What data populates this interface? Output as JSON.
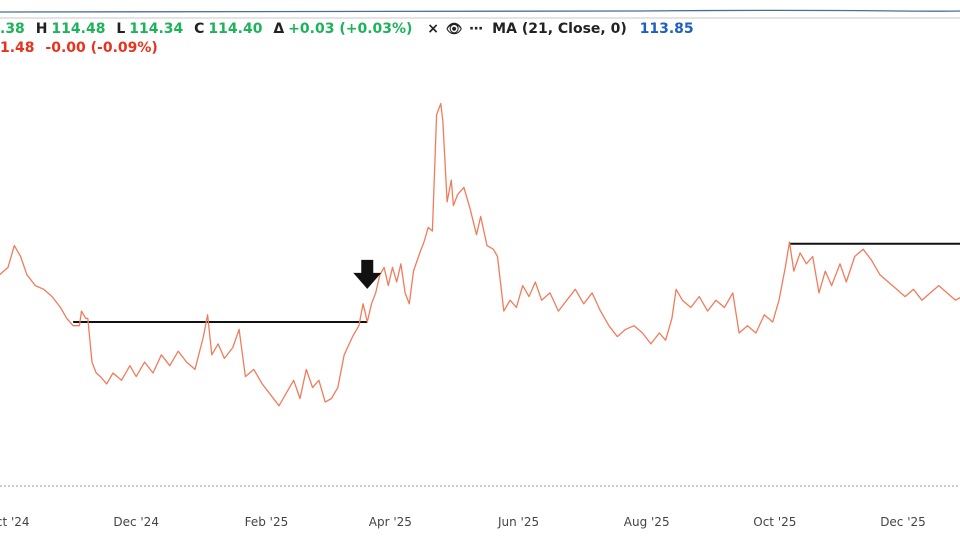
{
  "legend": {
    "row1": {
      "open_partial": ".38",
      "high_label": "H",
      "high": "114.48",
      "low_label": "L",
      "low": "114.34",
      "close_label": "C",
      "close": "114.40",
      "delta_label": "Δ",
      "delta": "+0.03 (+0.03%)",
      "close_icon": "×",
      "eye_icon": "👁",
      "more_icon": "⋯",
      "ma_label": "MA (21, Close, 0)",
      "ma_value": "113.85"
    },
    "row2": {
      "value_partial": "1.48",
      "change": "-0.00 (-0.09%)"
    }
  },
  "colors": {
    "line": "#f07c5c",
    "up": "#1db35a",
    "down": "#e8321e",
    "ma": "#1f5fbf",
    "annotation": "#111111"
  },
  "chart_data": {
    "type": "line",
    "x_ticks": [
      "Oct '24",
      "Dec '24",
      "Feb '25",
      "Apr '25",
      "Jun '25",
      "Aug '25",
      "Oct '25",
      "Dec '25"
    ],
    "y_axis_visible": false,
    "ylim": [
      0,
      100
    ],
    "series": [
      {
        "points": [
          [
            "2024-09-15",
            58
          ],
          [
            "2024-09-20",
            60
          ],
          [
            "2024-09-24",
            57
          ],
          [
            "2024-09-27",
            52
          ],
          [
            "2024-10-01",
            54
          ],
          [
            "2024-10-04",
            60
          ],
          [
            "2024-10-07",
            57
          ],
          [
            "2024-10-10",
            52
          ],
          [
            "2024-10-14",
            49
          ],
          [
            "2024-10-18",
            48
          ],
          [
            "2024-10-22",
            46
          ],
          [
            "2024-10-26",
            43
          ],
          [
            "2024-10-29",
            40
          ],
          [
            "2024-11-01",
            38
          ],
          [
            "2024-11-04",
            38
          ],
          [
            "2024-11-05",
            42
          ],
          [
            "2024-11-07",
            40
          ],
          [
            "2024-11-08",
            40
          ],
          [
            "2024-11-10",
            28
          ],
          [
            "2024-11-12",
            25
          ],
          [
            "2024-11-14",
            24
          ],
          [
            "2024-11-17",
            22
          ],
          [
            "2024-11-20",
            25
          ],
          [
            "2024-11-24",
            23
          ],
          [
            "2024-11-28",
            27
          ],
          [
            "2024-12-01",
            24
          ],
          [
            "2024-12-05",
            28
          ],
          [
            "2024-12-09",
            25
          ],
          [
            "2024-12-13",
            30
          ],
          [
            "2024-12-17",
            27
          ],
          [
            "2024-12-21",
            31
          ],
          [
            "2024-12-25",
            28
          ],
          [
            "2024-12-29",
            26
          ],
          [
            "2025-01-02",
            35
          ],
          [
            "2025-01-04",
            41
          ],
          [
            "2025-01-06",
            30
          ],
          [
            "2025-01-09",
            33
          ],
          [
            "2025-01-12",
            29
          ],
          [
            "2025-01-16",
            32
          ],
          [
            "2025-01-19",
            37
          ],
          [
            "2025-01-22",
            24
          ],
          [
            "2025-01-26",
            26
          ],
          [
            "2025-01-30",
            22
          ],
          [
            "2025-02-03",
            19
          ],
          [
            "2025-02-07",
            16
          ],
          [
            "2025-02-11",
            20
          ],
          [
            "2025-02-14",
            23
          ],
          [
            "2025-02-17",
            18
          ],
          [
            "2025-02-20",
            26
          ],
          [
            "2025-02-23",
            21
          ],
          [
            "2025-02-26",
            23
          ],
          [
            "2025-03-01",
            17
          ],
          [
            "2025-03-04",
            18
          ],
          [
            "2025-03-07",
            21
          ],
          [
            "2025-03-10",
            30
          ],
          [
            "2025-03-14",
            35
          ],
          [
            "2025-03-17",
            38
          ],
          [
            "2025-03-19",
            44
          ],
          [
            "2025-03-21",
            39
          ],
          [
            "2025-03-23",
            44
          ],
          [
            "2025-03-25",
            47
          ],
          [
            "2025-03-27",
            52
          ],
          [
            "2025-03-29",
            54
          ],
          [
            "2025-03-31",
            49
          ],
          [
            "2025-04-02",
            54
          ],
          [
            "2025-04-04",
            50
          ],
          [
            "2025-04-06",
            55
          ],
          [
            "2025-04-08",
            47
          ],
          [
            "2025-04-10",
            44
          ],
          [
            "2025-04-12",
            53
          ],
          [
            "2025-04-15",
            58
          ],
          [
            "2025-04-17",
            61
          ],
          [
            "2025-04-19",
            65
          ],
          [
            "2025-04-21",
            64
          ],
          [
            "2025-04-23",
            96
          ],
          [
            "2025-04-25",
            99
          ],
          [
            "2025-04-26",
            94
          ],
          [
            "2025-04-28",
            72
          ],
          [
            "2025-04-30",
            78
          ],
          [
            "2025-05-01",
            71
          ],
          [
            "2025-05-03",
            74
          ],
          [
            "2025-05-06",
            76
          ],
          [
            "2025-05-09",
            70
          ],
          [
            "2025-05-12",
            63
          ],
          [
            "2025-05-14",
            68
          ],
          [
            "2025-05-17",
            60
          ],
          [
            "2025-05-20",
            59
          ],
          [
            "2025-05-22",
            57
          ],
          [
            "2025-05-25",
            42
          ],
          [
            "2025-05-28",
            45
          ],
          [
            "2025-05-31",
            43
          ],
          [
            "2025-06-03",
            49
          ],
          [
            "2025-06-06",
            46
          ],
          [
            "2025-06-09",
            50
          ],
          [
            "2025-06-12",
            45
          ],
          [
            "2025-06-16",
            47
          ],
          [
            "2025-06-20",
            42
          ],
          [
            "2025-06-24",
            45
          ],
          [
            "2025-06-28",
            48
          ],
          [
            "2025-07-02",
            44
          ],
          [
            "2025-07-06",
            47
          ],
          [
            "2025-07-10",
            42
          ],
          [
            "2025-07-14",
            38
          ],
          [
            "2025-07-18",
            35
          ],
          [
            "2025-07-22",
            37
          ],
          [
            "2025-07-26",
            38
          ],
          [
            "2025-07-30",
            36
          ],
          [
            "2025-08-03",
            33
          ],
          [
            "2025-08-07",
            36
          ],
          [
            "2025-08-10",
            34
          ],
          [
            "2025-08-13",
            40
          ],
          [
            "2025-08-15",
            48
          ],
          [
            "2025-08-18",
            45
          ],
          [
            "2025-08-22",
            43
          ],
          [
            "2025-08-26",
            46
          ],
          [
            "2025-08-30",
            42
          ],
          [
            "2025-09-03",
            45
          ],
          [
            "2025-09-07",
            43
          ],
          [
            "2025-09-11",
            47
          ],
          [
            "2025-09-14",
            36
          ],
          [
            "2025-09-18",
            38
          ],
          [
            "2025-09-22",
            36
          ],
          [
            "2025-09-26",
            41
          ],
          [
            "2025-09-30",
            39
          ],
          [
            "2025-10-03",
            45
          ],
          [
            "2025-10-06",
            54
          ],
          [
            "2025-10-08",
            61
          ],
          [
            "2025-10-10",
            53
          ],
          [
            "2025-10-13",
            58
          ],
          [
            "2025-10-16",
            55
          ],
          [
            "2025-10-19",
            57
          ],
          [
            "2025-10-22",
            47
          ],
          [
            "2025-10-25",
            53
          ],
          [
            "2025-10-28",
            49
          ],
          [
            "2025-11-01",
            55
          ],
          [
            "2025-11-04",
            50
          ],
          [
            "2025-11-08",
            57
          ],
          [
            "2025-11-12",
            59
          ],
          [
            "2025-11-16",
            56
          ],
          [
            "2025-11-20",
            52
          ],
          [
            "2025-11-24",
            50
          ],
          [
            "2025-11-28",
            48
          ],
          [
            "2025-12-02",
            46
          ],
          [
            "2025-12-06",
            48
          ],
          [
            "2025-12-10",
            45
          ],
          [
            "2025-12-14",
            47
          ],
          [
            "2025-12-18",
            49
          ],
          [
            "2025-12-22",
            47
          ],
          [
            "2025-12-26",
            45
          ],
          [
            "2026-01-01",
            47
          ]
        ]
      }
    ],
    "annotations": {
      "hlines": [
        {
          "from": "2024-11-01",
          "to": "2025-03-21",
          "y": 39
        },
        {
          "from": "2025-10-08",
          "to": "2026-01-10",
          "y": 60.5
        }
      ],
      "arrow": {
        "date": "2025-03-21",
        "y": 47
      }
    }
  }
}
